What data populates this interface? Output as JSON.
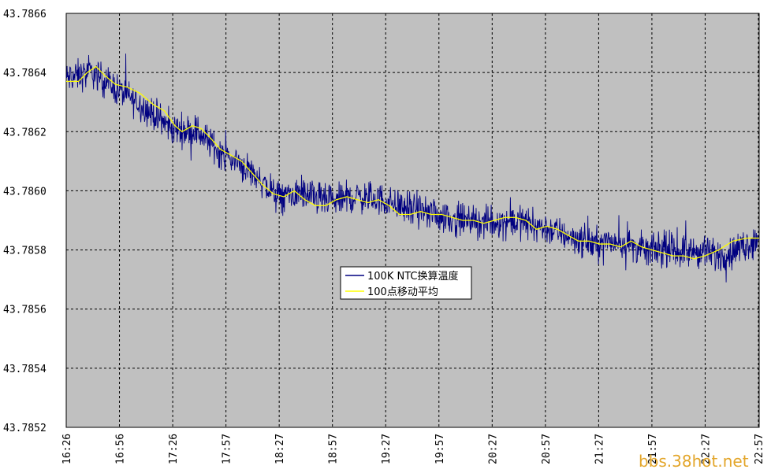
{
  "watermark": "bbs.38hot.net",
  "colors": {
    "plot_bg": "#c0c0c0",
    "grid": "#000000",
    "raw": "#000080",
    "avg": "#ffff00",
    "legend_bg": "#ffffff",
    "watermark": "#e3a62b"
  },
  "chart_data": {
    "type": "line",
    "title": "",
    "xlabel": "",
    "ylabel": "",
    "x_tick_labels": [
      "16:26",
      "16:56",
      "17:26",
      "17:57",
      "18:27",
      "18:57",
      "19:27",
      "19:57",
      "20:27",
      "20:57",
      "21:27",
      "21:57",
      "22:27",
      "22:57"
    ],
    "y_tick_labels": [
      "43.7852",
      "43.7854",
      "43.7856",
      "43.7858",
      "43.7860",
      "43.7862",
      "43.7864",
      "43.7866"
    ],
    "ylim": [
      43.7852,
      43.7866
    ],
    "x_range_minutes": [
      0,
      395
    ],
    "grid": true,
    "legend_position": "center",
    "series": [
      {
        "name": "100K NTC换算温度",
        "color": "#000080",
        "noise_amplitude": 8e-05,
        "approx_center_points": [
          [
            0,
            43.78638
          ],
          [
            15,
            43.7864
          ],
          [
            30,
            43.78634
          ],
          [
            45,
            43.78628
          ],
          [
            60,
            43.78621
          ],
          [
            75,
            43.7862
          ],
          [
            90,
            43.78612
          ],
          [
            105,
            43.78607
          ],
          [
            120,
            43.78598
          ],
          [
            135,
            43.78599
          ],
          [
            150,
            43.78596
          ],
          [
            165,
            43.78598
          ],
          [
            180,
            43.78597
          ],
          [
            195,
            43.78594
          ],
          [
            210,
            43.78592
          ],
          [
            225,
            43.7859
          ],
          [
            240,
            43.78589
          ],
          [
            255,
            43.7859
          ],
          [
            270,
            43.78588
          ],
          [
            285,
            43.78585
          ],
          [
            300,
            43.78582
          ],
          [
            315,
            43.78583
          ],
          [
            330,
            43.7858
          ],
          [
            345,
            43.7858
          ],
          [
            360,
            43.78579
          ],
          [
            375,
            43.78578
          ],
          [
            395,
            43.78584
          ]
        ]
      },
      {
        "name": "100点移动平均",
        "color": "#ffff00",
        "points": [
          [
            0,
            43.78637
          ],
          [
            7,
            43.78637
          ],
          [
            12,
            43.7864
          ],
          [
            17,
            43.78642
          ],
          [
            22,
            43.78639
          ],
          [
            28,
            43.78636
          ],
          [
            35,
            43.78635
          ],
          [
            42,
            43.78633
          ],
          [
            50,
            43.78629
          ],
          [
            56,
            43.78627
          ],
          [
            62,
            43.78622
          ],
          [
            66,
            43.7862
          ],
          [
            72,
            43.78622
          ],
          [
            77,
            43.78621
          ],
          [
            82,
            43.78618
          ],
          [
            88,
            43.78614
          ],
          [
            94,
            43.78612
          ],
          [
            100,
            43.7861
          ],
          [
            106,
            43.78606
          ],
          [
            112,
            43.78602
          ],
          [
            118,
            43.78599
          ],
          [
            124,
            43.78598
          ],
          [
            130,
            43.786
          ],
          [
            136,
            43.78597
          ],
          [
            142,
            43.78595
          ],
          [
            148,
            43.78595
          ],
          [
            154,
            43.78597
          ],
          [
            160,
            43.78598
          ],
          [
            166,
            43.78597
          ],
          [
            172,
            43.78596
          ],
          [
            178,
            43.78597
          ],
          [
            184,
            43.78595
          ],
          [
            190,
            43.78592
          ],
          [
            196,
            43.78592
          ],
          [
            202,
            43.78593
          ],
          [
            208,
            43.78592
          ],
          [
            214,
            43.78592
          ],
          [
            220,
            43.78591
          ],
          [
            226,
            43.7859
          ],
          [
            232,
            43.7859
          ],
          [
            238,
            43.78589
          ],
          [
            244,
            43.7859
          ],
          [
            250,
            43.78591
          ],
          [
            256,
            43.78591
          ],
          [
            262,
            43.7859
          ],
          [
            268,
            43.78587
          ],
          [
            274,
            43.78588
          ],
          [
            280,
            43.78587
          ],
          [
            286,
            43.78585
          ],
          [
            292,
            43.78583
          ],
          [
            298,
            43.78583
          ],
          [
            304,
            43.78582
          ],
          [
            310,
            43.78582
          ],
          [
            316,
            43.78581
          ],
          [
            322,
            43.78583
          ],
          [
            328,
            43.78581
          ],
          [
            334,
            43.7858
          ],
          [
            340,
            43.78579
          ],
          [
            346,
            43.78578
          ],
          [
            352,
            43.78578
          ],
          [
            358,
            43.78577
          ],
          [
            364,
            43.78578
          ],
          [
            372,
            43.7858
          ],
          [
            380,
            43.78583
          ],
          [
            388,
            43.78584
          ],
          [
            395,
            43.78584
          ]
        ]
      }
    ]
  }
}
